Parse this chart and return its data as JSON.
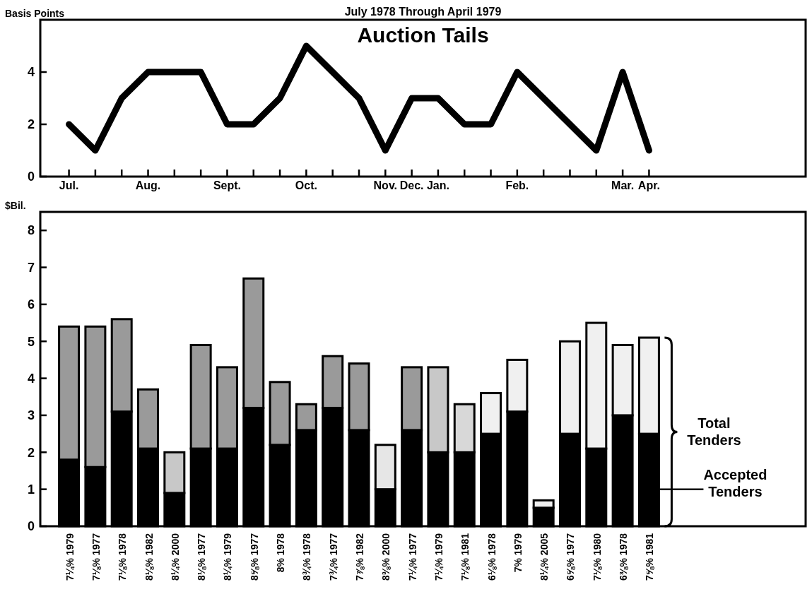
{
  "chart_data": [
    {
      "type": "line",
      "title": "Auction Tails",
      "ylabel": "Basis Points",
      "annotations": [
        "July 1978 Through April 1979"
      ],
      "categories": [
        "Jul.",
        null,
        null,
        "Aug.",
        null,
        null,
        "Sept.",
        null,
        null,
        "Oct.",
        null,
        null,
        "Nov.",
        "Dec.",
        "Jan.",
        null,
        null,
        "Feb.",
        null,
        null,
        null,
        "Mar.",
        "Apr."
      ],
      "values": [
        2,
        1,
        3,
        4,
        4,
        4,
        2,
        2,
        3,
        5,
        4,
        3,
        1,
        3,
        3,
        2,
        2,
        4,
        3,
        2,
        1,
        4,
        1
      ],
      "color": "#000000",
      "ylim": [
        0,
        6
      ],
      "yticks": [
        0,
        2,
        4
      ]
    },
    {
      "type": "bar",
      "ylabel": "$Bil.",
      "stacked": true,
      "categories": [
        "7¼% 1979",
        "7⅛% 1977",
        "7⅛% 1978",
        "8⅛% 1982",
        "8¼% 2000",
        "8⅛% 1977",
        "8¼% 1979",
        "8⅝% 1977",
        "8% 1978",
        "8¾% 1978",
        "7¾% 1977",
        "7⅞% 1982",
        "8⅜% 2000",
        "7¼% 1977",
        "7¼% 1979",
        "7⅛% 1981",
        "6⅛% 1978",
        "7% 1979",
        "8¼% 2005",
        "6⅝% 1977",
        "7⅛% 1980",
        "6⅜% 1978",
        "7⅝% 1981"
      ],
      "series": [
        {
          "name": "Accepted Tenders",
          "color": "#000000",
          "values": [
            1.8,
            1.6,
            3.1,
            2.1,
            0.9,
            2.1,
            2.1,
            3.2,
            2.2,
            2.6,
            3.2,
            2.6,
            1.0,
            2.6,
            2.0,
            2.0,
            2.5,
            3.1,
            0.5,
            2.5,
            2.1,
            3.0,
            2.5
          ]
        },
        {
          "name": "Total Tenders",
          "colors": [
            "#9a9a9a",
            "#9a9a9a",
            "#9a9a9a",
            "#9a9a9a",
            "#c8c8c8",
            "#9a9a9a",
            "#9a9a9a",
            "#9a9a9a",
            "#9a9a9a",
            "#9a9a9a",
            "#9a9a9a",
            "#9a9a9a",
            "#e6e6e6",
            "#9a9a9a",
            "#c8c8c8",
            "#d8d8d8",
            "#f0f0f0",
            "#f0f0f0",
            "#f0f0f0",
            "#f0f0f0",
            "#f0f0f0",
            "#f0f0f0",
            "#f0f0f0"
          ],
          "values": [
            3.6,
            3.8,
            2.5,
            1.6,
            1.1,
            2.8,
            2.2,
            3.5,
            1.7,
            0.7,
            1.4,
            1.8,
            1.2,
            1.7,
            2.3,
            1.3,
            1.1,
            1.4,
            0.2,
            2.5,
            3.4,
            1.9,
            2.6
          ]
        }
      ],
      "ylim": [
        0,
        8.5
      ],
      "yticks": [
        0,
        1,
        2,
        3,
        4,
        5,
        6,
        7,
        8
      ]
    }
  ]
}
